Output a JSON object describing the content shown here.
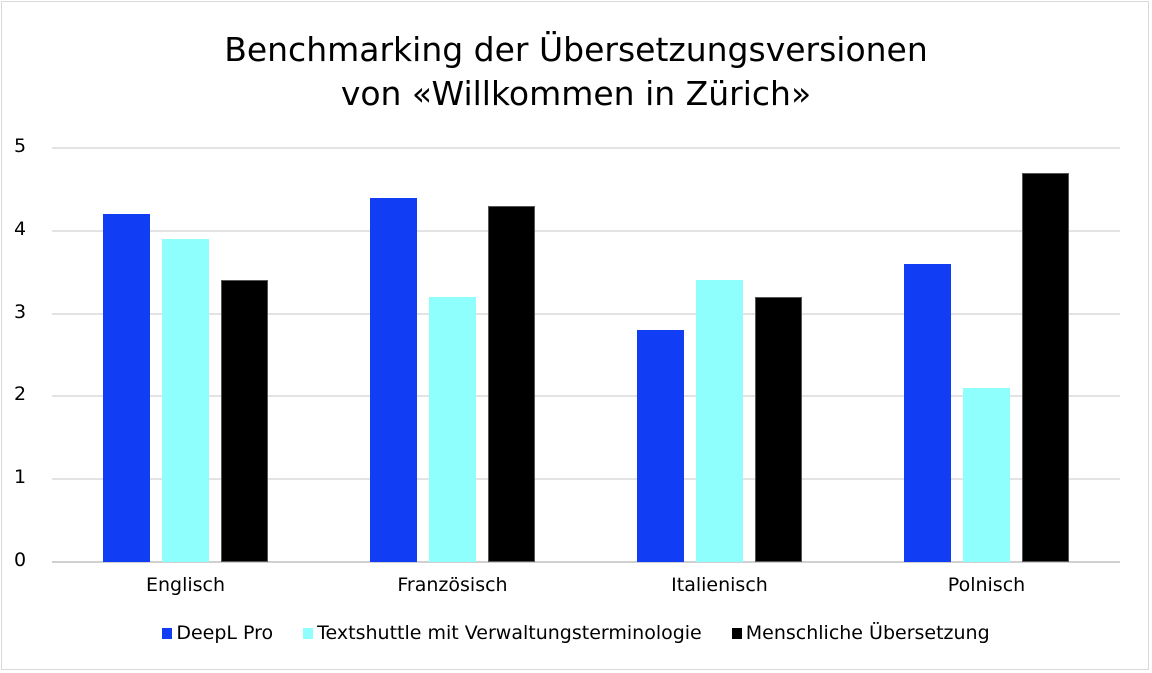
{
  "chart_data": {
    "type": "bar",
    "title": "Benchmarking der Übersetzungsversionen von «Willkommen in Zürich»",
    "title_lines": [
      "Benchmarking der Übersetzungsversionen",
      "von «Willkommen in Zürich»"
    ],
    "categories": [
      "Englisch",
      "Französisch",
      "Italienisch",
      "Polnisch"
    ],
    "series": [
      {
        "name": "DeepL Pro",
        "color": "#113df5",
        "values": [
          4.2,
          4.4,
          2.8,
          3.6
        ]
      },
      {
        "name": "Textshuttle mit Verwaltungsterminologie",
        "color": "#8ffffe",
        "values": [
          3.9,
          3.2,
          3.4,
          2.1
        ]
      },
      {
        "name": "Menschliche Übersetzung",
        "color": "#000000",
        "values": [
          3.4,
          4.3,
          3.2,
          4.7
        ]
      }
    ],
    "xlabel": "",
    "ylabel": "",
    "ylim": [
      0,
      5
    ],
    "yticks": [
      "0",
      "1",
      "2",
      "3",
      "4",
      "5"
    ],
    "grid": true,
    "legend_position": "bottom"
  }
}
